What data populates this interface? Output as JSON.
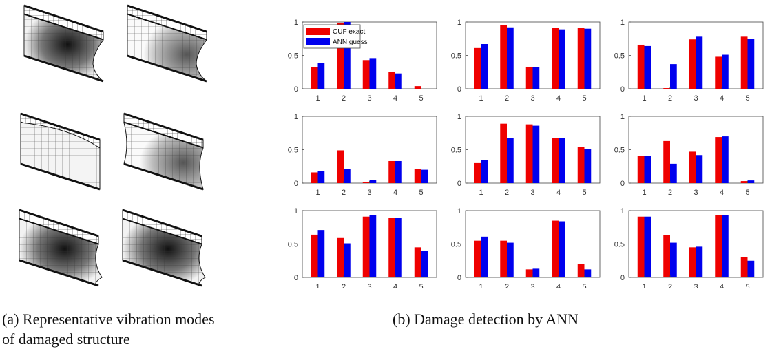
{
  "captions": {
    "a": "(a) Representative vibration modes of damaged structure",
    "b": "(b) Damage detection by ANN"
  },
  "colors": {
    "exact": "#ef0000",
    "guess": "#0000ee"
  },
  "chart_data": {
    "type": "bar",
    "layout": "3x3 grid of subplots",
    "categories": [
      "1",
      "2",
      "3",
      "4",
      "5"
    ],
    "ylim": [
      0,
      1
    ],
    "yticks": [
      "0",
      "0.5",
      "1"
    ],
    "legend": {
      "entries": [
        "CUF exact",
        "ANN guess"
      ],
      "placement": "top-left of first subplot"
    },
    "subplots": [
      {
        "series": [
          {
            "name": "CUF exact",
            "values": [
              0.32,
              0.99,
              0.43,
              0.25,
              0.04
            ]
          },
          {
            "name": "ANN guess",
            "values": [
              0.39,
              1.0,
              0.46,
              0.23,
              0.0
            ]
          }
        ]
      },
      {
        "series": [
          {
            "name": "CUF exact",
            "values": [
              0.61,
              0.95,
              0.33,
              0.91,
              0.91
            ]
          },
          {
            "name": "ANN guess",
            "values": [
              0.67,
              0.92,
              0.32,
              0.89,
              0.9
            ]
          }
        ]
      },
      {
        "series": [
          {
            "name": "CUF exact",
            "values": [
              0.66,
              0.01,
              0.74,
              0.48,
              0.78
            ]
          },
          {
            "name": "ANN guess",
            "values": [
              0.64,
              0.37,
              0.78,
              0.51,
              0.75
            ]
          }
        ]
      },
      {
        "series": [
          {
            "name": "CUF exact",
            "values": [
              0.16,
              0.49,
              0.02,
              0.33,
              0.21
            ]
          },
          {
            "name": "ANN guess",
            "values": [
              0.18,
              0.21,
              0.05,
              0.33,
              0.2
            ]
          }
        ]
      },
      {
        "series": [
          {
            "name": "CUF exact",
            "values": [
              0.3,
              0.89,
              0.88,
              0.67,
              0.54
            ]
          },
          {
            "name": "ANN guess",
            "values": [
              0.35,
              0.67,
              0.86,
              0.68,
              0.51
            ]
          }
        ]
      },
      {
        "series": [
          {
            "name": "CUF exact",
            "values": [
              0.41,
              0.63,
              0.47,
              0.69,
              0.03
            ]
          },
          {
            "name": "ANN guess",
            "values": [
              0.41,
              0.29,
              0.42,
              0.7,
              0.04
            ]
          }
        ]
      },
      {
        "series": [
          {
            "name": "CUF exact",
            "values": [
              0.64,
              0.59,
              0.91,
              0.89,
              0.45
            ]
          },
          {
            "name": "ANN guess",
            "values": [
              0.71,
              0.51,
              0.93,
              0.89,
              0.4
            ]
          }
        ]
      },
      {
        "series": [
          {
            "name": "CUF exact",
            "values": [
              0.55,
              0.55,
              0.12,
              0.85,
              0.2
            ]
          },
          {
            "name": "ANN guess",
            "values": [
              0.61,
              0.52,
              0.13,
              0.84,
              0.12
            ]
          }
        ]
      },
      {
        "series": [
          {
            "name": "CUF exact",
            "values": [
              0.91,
              0.63,
              0.45,
              0.93,
              0.3
            ]
          },
          {
            "name": "ANN guess",
            "values": [
              0.91,
              0.52,
              0.46,
              0.93,
              0.25
            ]
          }
        ]
      }
    ]
  }
}
